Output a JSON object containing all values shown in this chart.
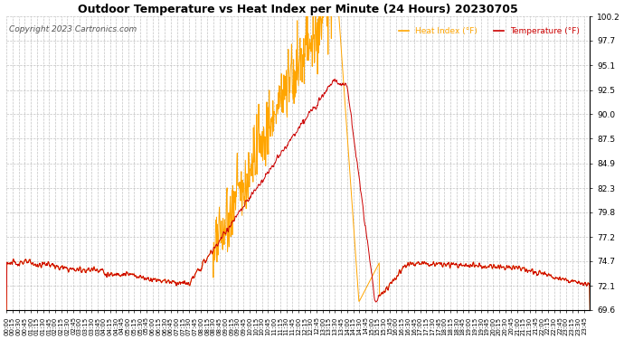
{
  "title": "Outdoor Temperature vs Heat Index per Minute (24 Hours) 20230705",
  "copyright": "Copyright 2023 Cartronics.com",
  "legend_heat": "Heat Index (°F)",
  "legend_temp": "Temperature (°F)",
  "color_heat": "#FFA500",
  "color_temp": "#CC0000",
  "color_grid": "#AAAAAA",
  "color_bg": "#FFFFFF",
  "ylim_min": 69.6,
  "ylim_max": 100.2,
  "yticks": [
    69.6,
    72.1,
    74.7,
    77.2,
    79.8,
    82.3,
    84.9,
    87.5,
    90.0,
    92.5,
    95.1,
    97.7,
    100.2
  ],
  "total_minutes": 1440
}
